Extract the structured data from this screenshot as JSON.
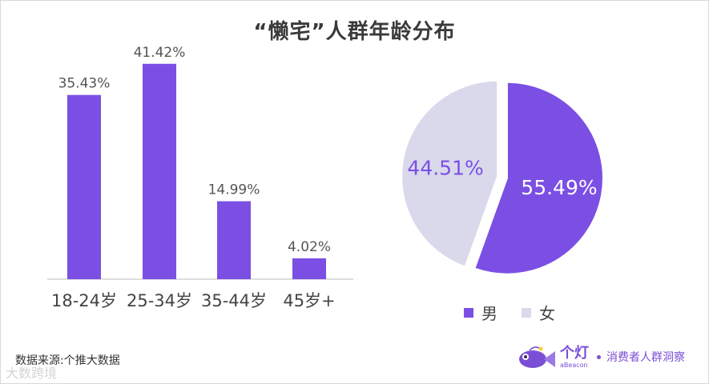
{
  "title": "“懒宅”人群年龄分布",
  "source": "数据来源:个推大数据",
  "watermark": "大数跨境",
  "brand": {
    "name": "个灯",
    "sub": "aBeacon",
    "tagline": "消费者人群洞察",
    "fish_icon": "fish-mascot-icon"
  },
  "colors": {
    "accent": "#7b4fe4",
    "secondary": "#d9d9eb",
    "text": "#3a3a3a"
  },
  "chart_data": [
    {
      "type": "bar",
      "categories": [
        "18-24岁",
        "25-34岁",
        "35-44岁",
        "45岁+"
      ],
      "values": [
        35.43,
        41.42,
        14.99,
        4.02
      ],
      "data_labels": [
        "35.43%",
        "41.42%",
        "14.99%",
        "4.02%"
      ],
      "title": "",
      "xlabel": "",
      "ylabel": "",
      "ylim": [
        0,
        45
      ],
      "grid": false
    },
    {
      "type": "pie",
      "labels": [
        "男",
        "女"
      ],
      "values": [
        55.49,
        44.51
      ],
      "data_labels": [
        "55.49%",
        "44.51%"
      ],
      "legend": "bottom"
    }
  ]
}
